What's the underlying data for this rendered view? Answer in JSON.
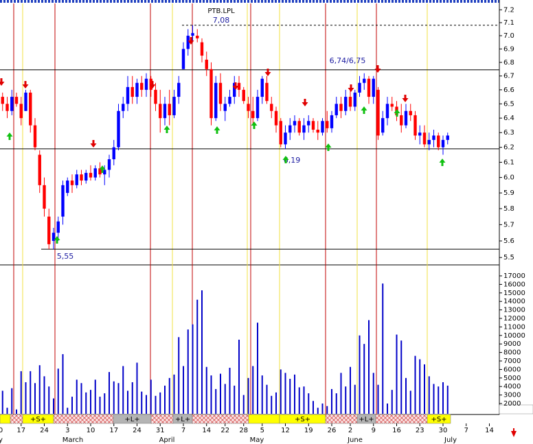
{
  "chart_data": {
    "type": "candlestick",
    "title": "PTB.LPL",
    "categories": [
      "0",
      null,
      null,
      null,
      null,
      "17",
      null,
      null,
      null,
      null,
      "24",
      null,
      null,
      null,
      null,
      "3",
      null,
      null,
      null,
      null,
      "10",
      null,
      null,
      null,
      null,
      "17",
      null,
      null,
      null,
      null,
      "24",
      null,
      null,
      null,
      null,
      "31",
      null,
      null,
      null,
      null,
      "7",
      null,
      null,
      null,
      null,
      "14",
      null,
      null,
      null,
      "22",
      null,
      null,
      null,
      "28",
      null,
      null,
      null,
      "5",
      null,
      null,
      null,
      null,
      "12",
      null,
      null,
      null,
      null,
      "19",
      null,
      null,
      null,
      null,
      "26",
      null,
      null,
      null,
      "2",
      null,
      null,
      null,
      null,
      "9",
      null,
      null,
      null,
      null,
      "16",
      null,
      null,
      null,
      null,
      "23",
      null,
      null,
      null,
      null,
      "30",
      null,
      null,
      null,
      null,
      "7",
      null,
      null,
      null,
      null,
      "14",
      null
    ],
    "months": [
      "y",
      "March",
      "April",
      "May",
      "June",
      "July"
    ],
    "open": [
      6.62,
      6.55,
      6.5,
      6.45,
      6.55,
      6.5,
      6.45,
      6.58,
      6.35,
      6.15,
      5.95,
      5.75,
      5.6,
      5.65,
      5.75,
      5.9,
      5.98,
      5.95,
      6.02,
      5.98,
      6.03,
      6.0,
      6.06,
      6.02,
      6.05,
      6.12,
      6.2,
      6.45,
      6.5,
      6.62,
      6.55,
      6.65,
      6.6,
      6.68,
      6.6,
      6.5,
      6.4,
      6.5,
      6.42,
      6.55,
      6.75,
      6.9,
      7.0,
      7.0,
      6.95,
      6.82,
      6.75,
      6.4,
      6.65,
      6.45,
      6.5,
      6.55,
      6.65,
      6.6,
      6.5,
      6.45,
      6.4,
      6.55,
      6.65,
      6.5,
      6.45,
      6.38,
      6.22,
      6.3,
      6.35,
      6.38,
      6.3,
      6.35,
      6.38,
      6.32,
      6.3,
      6.38,
      6.33,
      6.42,
      6.5,
      6.45,
      6.55,
      6.48,
      6.58,
      6.65,
      6.68,
      6.55,
      6.6,
      6.3,
      6.4,
      6.5,
      6.48,
      6.42,
      6.35,
      6.45,
      6.42,
      6.28,
      6.3,
      6.22,
      6.25,
      6.28,
      6.2,
      6.25,
      null,
      null,
      null,
      null,
      null,
      null,
      null,
      null,
      null,
      null
    ],
    "high": [
      6.65,
      6.58,
      6.55,
      6.6,
      6.58,
      6.55,
      6.6,
      6.6,
      6.4,
      6.18,
      6.0,
      5.8,
      5.68,
      5.75,
      5.98,
      6.0,
      6.02,
      6.05,
      6.05,
      6.05,
      6.08,
      6.08,
      6.1,
      6.08,
      6.15,
      6.25,
      6.5,
      6.55,
      6.7,
      6.7,
      6.68,
      6.7,
      6.72,
      6.7,
      6.65,
      6.6,
      6.55,
      6.6,
      6.6,
      6.7,
      6.95,
      7.05,
      7.08,
      7.05,
      6.98,
      6.88,
      6.8,
      6.7,
      6.72,
      6.55,
      6.6,
      6.7,
      6.7,
      6.62,
      6.55,
      6.55,
      6.6,
      6.7,
      6.7,
      6.55,
      6.48,
      6.4,
      6.35,
      6.4,
      6.42,
      6.4,
      6.4,
      6.42,
      6.4,
      6.38,
      6.4,
      6.45,
      6.45,
      6.55,
      6.55,
      6.6,
      6.62,
      6.6,
      6.7,
      6.72,
      6.7,
      6.7,
      6.62,
      6.45,
      6.55,
      6.55,
      6.52,
      6.5,
      6.5,
      6.5,
      6.45,
      6.35,
      6.35,
      6.3,
      6.32,
      6.3,
      6.28,
      6.3,
      null,
      null,
      null,
      null,
      null,
      null,
      null,
      null,
      null,
      null
    ],
    "low": [
      6.55,
      6.45,
      6.4,
      6.42,
      6.48,
      6.35,
      6.45,
      6.3,
      6.18,
      5.9,
      5.75,
      5.55,
      5.55,
      5.6,
      5.7,
      5.88,
      5.9,
      5.93,
      5.95,
      5.96,
      5.98,
      5.98,
      6.0,
      5.95,
      6.0,
      6.08,
      6.18,
      6.4,
      6.45,
      6.5,
      6.5,
      6.55,
      6.55,
      6.55,
      6.45,
      6.3,
      6.35,
      6.35,
      6.4,
      6.5,
      6.75,
      6.85,
      6.95,
      6.95,
      6.8,
      6.7,
      6.35,
      6.38,
      6.45,
      6.38,
      6.48,
      6.5,
      6.55,
      6.5,
      6.4,
      6.35,
      6.38,
      6.5,
      6.5,
      6.4,
      6.3,
      6.2,
      6.19,
      6.25,
      6.3,
      6.28,
      6.25,
      6.3,
      6.3,
      6.25,
      6.28,
      6.3,
      6.3,
      6.4,
      6.4,
      6.42,
      6.45,
      6.45,
      6.55,
      6.6,
      6.5,
      6.5,
      6.25,
      6.28,
      6.35,
      6.45,
      6.38,
      6.3,
      6.33,
      6.38,
      6.25,
      6.22,
      6.2,
      6.18,
      6.2,
      6.18,
      6.15,
      6.22,
      null,
      null,
      null,
      null,
      null,
      null,
      null,
      null,
      null,
      null
    ],
    "close": [
      6.58,
      6.5,
      6.45,
      6.55,
      6.5,
      6.4,
      6.58,
      6.35,
      6.2,
      5.95,
      5.8,
      5.58,
      5.65,
      5.72,
      5.95,
      5.98,
      5.95,
      6.02,
      5.98,
      6.03,
      6.0,
      6.06,
      6.02,
      6.05,
      6.12,
      6.2,
      6.45,
      6.5,
      6.62,
      6.55,
      6.65,
      6.6,
      6.68,
      6.6,
      6.5,
      6.4,
      6.5,
      6.42,
      6.55,
      6.65,
      6.9,
      7.0,
      7.02,
      6.98,
      6.85,
      6.75,
      6.4,
      6.65,
      6.5,
      6.5,
      6.55,
      6.65,
      6.6,
      6.52,
      6.45,
      6.4,
      6.55,
      6.68,
      6.52,
      6.45,
      6.35,
      6.22,
      6.3,
      6.35,
      6.38,
      6.3,
      6.35,
      6.38,
      6.32,
      6.3,
      6.38,
      6.33,
      6.42,
      6.5,
      6.45,
      6.55,
      6.48,
      6.58,
      6.65,
      6.68,
      6.55,
      6.68,
      6.28,
      6.4,
      6.5,
      6.48,
      6.42,
      6.35,
      6.45,
      6.42,
      6.28,
      6.3,
      6.22,
      6.25,
      6.28,
      6.2,
      6.25,
      6.28,
      null,
      null,
      null,
      null,
      null,
      null,
      null,
      null,
      null,
      null
    ],
    "volume": [
      3300,
      3500,
      1500,
      3800,
      1300,
      5800,
      4500,
      5800,
      4400,
      6500,
      5200,
      4000,
      2600,
      6100,
      7800,
      1500,
      2800,
      4800,
      4400,
      3300,
      3600,
      4800,
      2800,
      3200,
      5700,
      4600,
      4400,
      6400,
      3500,
      4500,
      6800,
      3400,
      3000,
      4800,
      2900,
      3300,
      4100,
      5000,
      5400,
      9800,
      6400,
      10700,
      11300,
      14200,
      15300,
      6300,
      5300,
      3700,
      5500,
      4300,
      6200,
      4100,
      9500,
      3000,
      5000,
      6400,
      11500,
      5300,
      4200,
      2900,
      3300,
      6000,
      5600,
      4900,
      5400,
      3900,
      4000,
      3200,
      2300,
      1500,
      2000,
      1700,
      3700,
      3200,
      5600,
      4000,
      6300,
      4200,
      10000,
      9000,
      11800,
      5600,
      4200,
      16100,
      2000,
      3600,
      10100,
      9400,
      5000,
      3500,
      7600,
      7200,
      6600,
      5200,
      4300,
      4000,
      4500,
      4100,
      null,
      null,
      null,
      null,
      null,
      null,
      null,
      null,
      null,
      null
    ],
    "up_color": "#0000ff",
    "down_color": "#ff0000",
    "volume_color": "#0000c8",
    "log_scale": true,
    "ylim": [
      5.46,
      7.25
    ],
    "yticks": [
      {
        "value": 7.2,
        "label": "7.2"
      },
      {
        "value": 7.1,
        "label": "7.1"
      },
      {
        "value": 7,
        "label": "7.0"
      },
      6.9,
      6.8,
      6.7,
      6.6,
      6.5,
      6.4,
      6.3,
      6.2,
      6.1,
      {
        "value": 6,
        "label": "6.0"
      },
      5.9,
      5.8,
      5.7,
      5.6,
      5.5
    ],
    "volume_ylim": [
      790,
      17565
    ],
    "volume_ticks": [
      17000,
      16000,
      15000,
      14000,
      13000,
      12000,
      11000,
      10000,
      9000,
      8000,
      7000,
      6000,
      5000,
      4000,
      3000,
      2000
    ],
    "levels": [
      {
        "label": "7,08",
        "value": 7.08
      },
      {
        "label": "6,74/6,75",
        "value": 6.745
      },
      {
        "label": "6,19",
        "value": 6.19
      },
      {
        "label": "5,55",
        "value": 5.55
      }
    ],
    "signal_labels": [
      "+S+",
      "+L+",
      "+L+",
      "+S+",
      "+L+",
      "+S+"
    ]
  }
}
